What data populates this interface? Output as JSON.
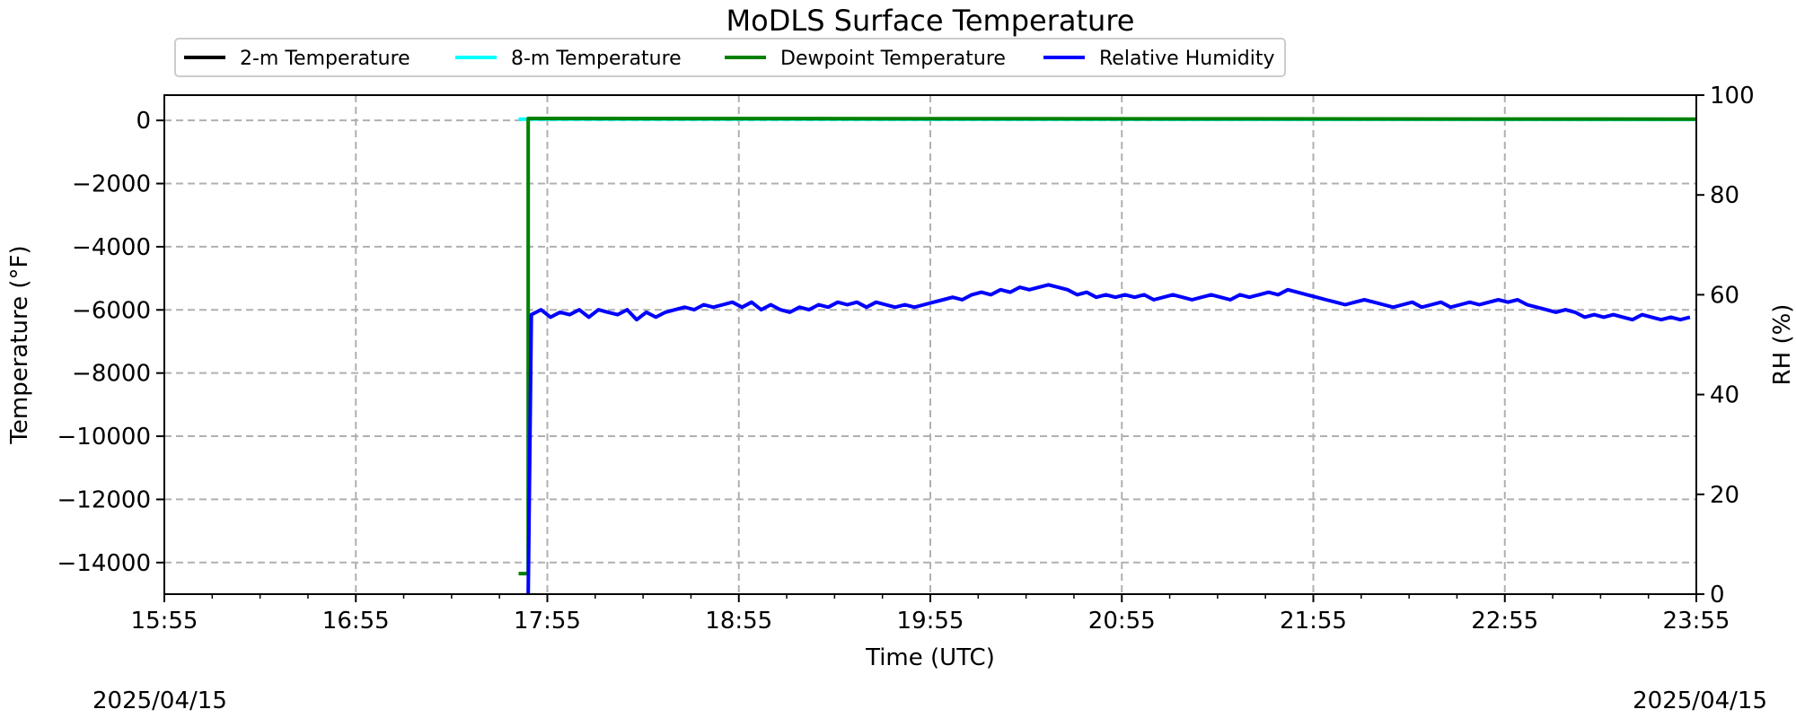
{
  "chart_data": {
    "type": "line",
    "title": "MoDLS Surface Temperature",
    "xlabel": "Time (UTC)",
    "ylabel": "Temperature ($^\\circ$F)",
    "ylabel_display": "Temperature (°F)",
    "y2label": "RH (%)",
    "x_range_minutes": [
      0,
      480
    ],
    "x_ticks": [
      "15:55",
      "16:55",
      "17:55",
      "18:55",
      "19:55",
      "20:55",
      "21:55",
      "22:55",
      "23:55"
    ],
    "ylim": [
      -15000,
      800
    ],
    "y_ticks": [
      0,
      -2000,
      -4000,
      -6000,
      -8000,
      -10000,
      -12000,
      -14000
    ],
    "y_tick_labels": [
      "0",
      "−2000",
      "−4000",
      "−6000",
      "−8000",
      "−10000",
      "−12000",
      "−14000"
    ],
    "y2lim": [
      0,
      100
    ],
    "y2_ticks": [
      0,
      20,
      40,
      60,
      80,
      100
    ],
    "grid": true,
    "legend_position": "top",
    "date_left": "2025/04/15",
    "date_right": "2025/04/15",
    "series": [
      {
        "name": "2-m Temperature",
        "color": "#000000",
        "axis": "left",
        "points": []
      },
      {
        "name": "8-m Temperature",
        "color": "#00ffff",
        "axis": "left",
        "points": [
          [
            111,
            40
          ],
          [
            116,
            40
          ],
          [
            480,
            30
          ]
        ]
      },
      {
        "name": "Dewpoint Temperature",
        "color": "#008000",
        "axis": "left",
        "points": [
          [
            111,
            -14350
          ],
          [
            114,
            -14350
          ],
          [
            114,
            60
          ],
          [
            480,
            40
          ]
        ]
      },
      {
        "name": "Relative Humidity",
        "color": "#0000ff",
        "axis": "right",
        "points": [
          [
            114,
            0
          ],
          [
            115,
            56
          ],
          [
            118,
            57
          ],
          [
            121,
            55.5
          ],
          [
            124,
            56.5
          ],
          [
            127,
            56
          ],
          [
            130,
            57
          ],
          [
            133,
            55.5
          ],
          [
            136,
            57
          ],
          [
            139,
            56.5
          ],
          [
            142,
            56
          ],
          [
            145,
            57
          ],
          [
            148,
            55
          ],
          [
            151,
            56.5
          ],
          [
            154,
            55.5
          ],
          [
            157,
            56.5
          ],
          [
            160,
            57
          ],
          [
            163,
            57.5
          ],
          [
            166,
            57
          ],
          [
            169,
            58
          ],
          [
            172,
            57.5
          ],
          [
            175,
            58
          ],
          [
            178,
            58.5
          ],
          [
            181,
            57.5
          ],
          [
            184,
            58.5
          ],
          [
            187,
            57
          ],
          [
            190,
            58
          ],
          [
            193,
            57
          ],
          [
            196,
            56.5
          ],
          [
            199,
            57.5
          ],
          [
            202,
            57
          ],
          [
            205,
            58
          ],
          [
            208,
            57.5
          ],
          [
            211,
            58.5
          ],
          [
            214,
            58
          ],
          [
            217,
            58.5
          ],
          [
            220,
            57.5
          ],
          [
            223,
            58.5
          ],
          [
            226,
            58
          ],
          [
            229,
            57.5
          ],
          [
            232,
            58
          ],
          [
            235,
            57.5
          ],
          [
            238,
            58
          ],
          [
            241,
            58.5
          ],
          [
            244,
            59
          ],
          [
            247,
            59.5
          ],
          [
            250,
            59
          ],
          [
            253,
            60
          ],
          [
            256,
            60.5
          ],
          [
            259,
            60
          ],
          [
            262,
            61
          ],
          [
            265,
            60.5
          ],
          [
            268,
            61.5
          ],
          [
            271,
            61
          ],
          [
            274,
            61.5
          ],
          [
            277,
            62
          ],
          [
            280,
            61.5
          ],
          [
            283,
            61
          ],
          [
            286,
            60
          ],
          [
            289,
            60.5
          ],
          [
            292,
            59.5
          ],
          [
            295,
            60
          ],
          [
            298,
            59.5
          ],
          [
            301,
            60
          ],
          [
            304,
            59.5
          ],
          [
            307,
            60
          ],
          [
            310,
            59
          ],
          [
            313,
            59.5
          ],
          [
            316,
            60
          ],
          [
            319,
            59.5
          ],
          [
            322,
            59
          ],
          [
            325,
            59.5
          ],
          [
            328,
            60
          ],
          [
            331,
            59.5
          ],
          [
            334,
            59
          ],
          [
            337,
            60
          ],
          [
            340,
            59.5
          ],
          [
            343,
            60
          ],
          [
            346,
            60.5
          ],
          [
            349,
            60
          ],
          [
            352,
            61
          ],
          [
            355,
            60.5
          ],
          [
            358,
            60
          ],
          [
            361,
            59.5
          ],
          [
            364,
            59
          ],
          [
            367,
            58.5
          ],
          [
            370,
            58
          ],
          [
            373,
            58.5
          ],
          [
            376,
            59
          ],
          [
            379,
            58.5
          ],
          [
            382,
            58
          ],
          [
            385,
            57.5
          ],
          [
            388,
            58
          ],
          [
            391,
            58.5
          ],
          [
            394,
            57.5
          ],
          [
            397,
            58
          ],
          [
            400,
            58.5
          ],
          [
            403,
            57.5
          ],
          [
            406,
            58
          ],
          [
            409,
            58.5
          ],
          [
            412,
            58
          ],
          [
            415,
            58.5
          ],
          [
            418,
            59
          ],
          [
            421,
            58.5
          ],
          [
            424,
            59
          ],
          [
            427,
            58
          ],
          [
            430,
            57.5
          ],
          [
            433,
            57
          ],
          [
            436,
            56.5
          ],
          [
            439,
            57
          ],
          [
            442,
            56.5
          ],
          [
            445,
            55.5
          ],
          [
            448,
            56
          ],
          [
            451,
            55.5
          ],
          [
            454,
            56
          ],
          [
            457,
            55.5
          ],
          [
            460,
            55
          ],
          [
            463,
            56
          ],
          [
            466,
            55.5
          ],
          [
            469,
            55
          ],
          [
            472,
            55.5
          ],
          [
            475,
            55
          ],
          [
            478,
            55.5
          ]
        ]
      }
    ]
  }
}
